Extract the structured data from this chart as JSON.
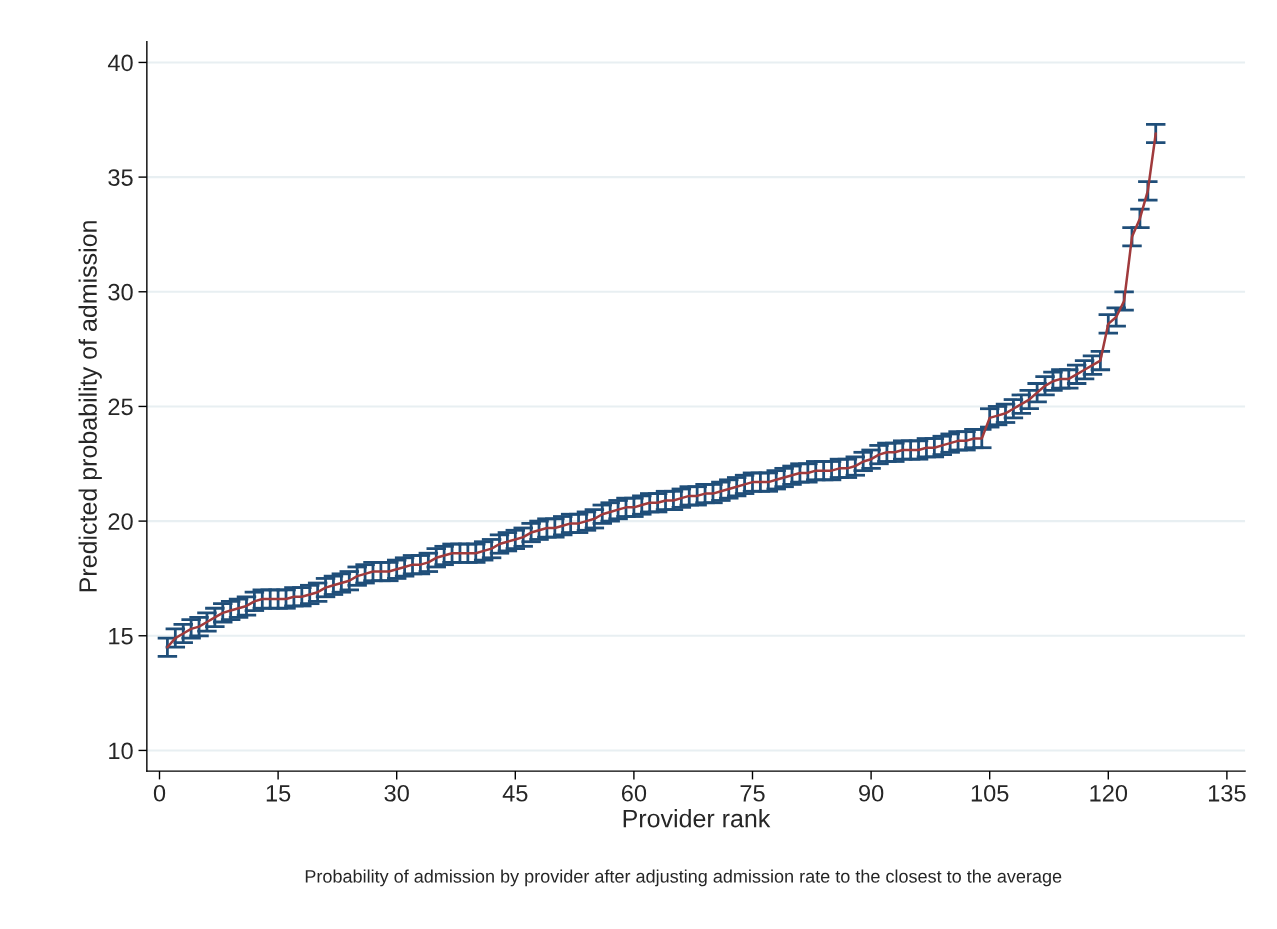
{
  "chart_data": {
    "type": "line",
    "xlabel": "Provider rank",
    "ylabel": "Predicted probability of admission",
    "annotations": [
      "Probability of admission by provider after adjusting admission rate to the closest to the average"
    ],
    "x": [
      1,
      2,
      3,
      4,
      5,
      6,
      7,
      8,
      9,
      10,
      11,
      12,
      13,
      14,
      15,
      16,
      17,
      18,
      19,
      20,
      21,
      22,
      23,
      24,
      25,
      26,
      27,
      28,
      29,
      30,
      31,
      32,
      33,
      34,
      35,
      36,
      37,
      38,
      39,
      40,
      41,
      42,
      43,
      44,
      45,
      46,
      47,
      48,
      49,
      50,
      51,
      52,
      53,
      54,
      55,
      56,
      57,
      58,
      59,
      60,
      61,
      62,
      63,
      64,
      65,
      66,
      67,
      68,
      69,
      70,
      71,
      72,
      73,
      74,
      75,
      76,
      77,
      78,
      79,
      80,
      81,
      82,
      83,
      84,
      85,
      86,
      87,
      88,
      89,
      90,
      91,
      92,
      93,
      94,
      95,
      96,
      97,
      98,
      99,
      100,
      101,
      102,
      103,
      104,
      105,
      106,
      107,
      108,
      109,
      110,
      111,
      112,
      113,
      114,
      115,
      116,
      117,
      118,
      119,
      120,
      121,
      122,
      123,
      124,
      125,
      126
    ],
    "series": [
      {
        "color": "#a03a3c",
        "values": [
          14.5,
          14.9,
          15.1,
          15.3,
          15.4,
          15.6,
          15.8,
          16.0,
          16.1,
          16.2,
          16.3,
          16.5,
          16.6,
          16.6,
          16.6,
          16.6,
          16.7,
          16.7,
          16.8,
          16.9,
          17.1,
          17.2,
          17.3,
          17.4,
          17.6,
          17.7,
          17.8,
          17.8,
          17.8,
          17.9,
          18.0,
          18.1,
          18.1,
          18.2,
          18.4,
          18.5,
          18.6,
          18.6,
          18.6,
          18.6,
          18.7,
          18.8,
          19.0,
          19.1,
          19.2,
          19.3,
          19.5,
          19.6,
          19.7,
          19.7,
          19.8,
          19.9,
          19.9,
          20.0,
          20.1,
          20.3,
          20.4,
          20.5,
          20.6,
          20.6,
          20.7,
          20.8,
          20.8,
          20.9,
          20.9,
          21.0,
          21.1,
          21.1,
          21.2,
          21.2,
          21.3,
          21.4,
          21.5,
          21.6,
          21.7,
          21.7,
          21.7,
          21.8,
          21.9,
          22.0,
          22.1,
          22.1,
          22.2,
          22.2,
          22.2,
          22.3,
          22.3,
          22.4,
          22.6,
          22.7,
          22.9,
          23.0,
          23.0,
          23.1,
          23.1,
          23.1,
          23.2,
          23.2,
          23.3,
          23.4,
          23.5,
          23.5,
          23.6,
          23.6,
          24.5,
          24.6,
          24.7,
          24.9,
          25.1,
          25.3,
          25.6,
          25.9,
          26.1,
          26.2,
          26.2,
          26.4,
          26.6,
          26.8,
          27.0,
          28.6,
          28.9,
          29.6,
          32.4,
          33.2,
          34.4,
          36.9
        ],
        "errors": [
          0.4,
          0.4,
          0.4,
          0.4,
          0.4,
          0.4,
          0.4,
          0.4,
          0.4,
          0.4,
          0.4,
          0.4,
          0.4,
          0.4,
          0.4,
          0.4,
          0.4,
          0.4,
          0.4,
          0.4,
          0.4,
          0.4,
          0.4,
          0.4,
          0.4,
          0.4,
          0.4,
          0.4,
          0.4,
          0.4,
          0.4,
          0.4,
          0.4,
          0.4,
          0.4,
          0.4,
          0.4,
          0.4,
          0.4,
          0.4,
          0.4,
          0.4,
          0.4,
          0.4,
          0.4,
          0.4,
          0.4,
          0.4,
          0.4,
          0.4,
          0.4,
          0.4,
          0.4,
          0.4,
          0.4,
          0.4,
          0.4,
          0.4,
          0.4,
          0.4,
          0.4,
          0.4,
          0.4,
          0.4,
          0.4,
          0.4,
          0.4,
          0.4,
          0.4,
          0.4,
          0.4,
          0.4,
          0.4,
          0.4,
          0.4,
          0.4,
          0.4,
          0.4,
          0.4,
          0.4,
          0.4,
          0.4,
          0.4,
          0.4,
          0.4,
          0.4,
          0.4,
          0.4,
          0.4,
          0.4,
          0.4,
          0.4,
          0.4,
          0.4,
          0.4,
          0.4,
          0.4,
          0.4,
          0.4,
          0.4,
          0.4,
          0.4,
          0.4,
          0.4,
          0.4,
          0.4,
          0.4,
          0.4,
          0.4,
          0.4,
          0.4,
          0.4,
          0.4,
          0.4,
          0.4,
          0.4,
          0.4,
          0.4,
          0.4,
          0.4,
          0.4,
          0.4,
          0.4,
          0.4,
          0.4,
          0.4
        ]
      }
    ],
    "xlim": [
      -1.6,
      137.3
    ],
    "xticks": [
      0,
      15,
      30,
      45,
      60,
      75,
      90,
      105,
      120,
      135
    ],
    "ylim": [
      9.1,
      40.9
    ],
    "yticks": [
      10,
      15,
      20,
      25,
      30,
      35,
      40
    ],
    "grid": "y",
    "marker": "none",
    "line_style": "solid"
  }
}
